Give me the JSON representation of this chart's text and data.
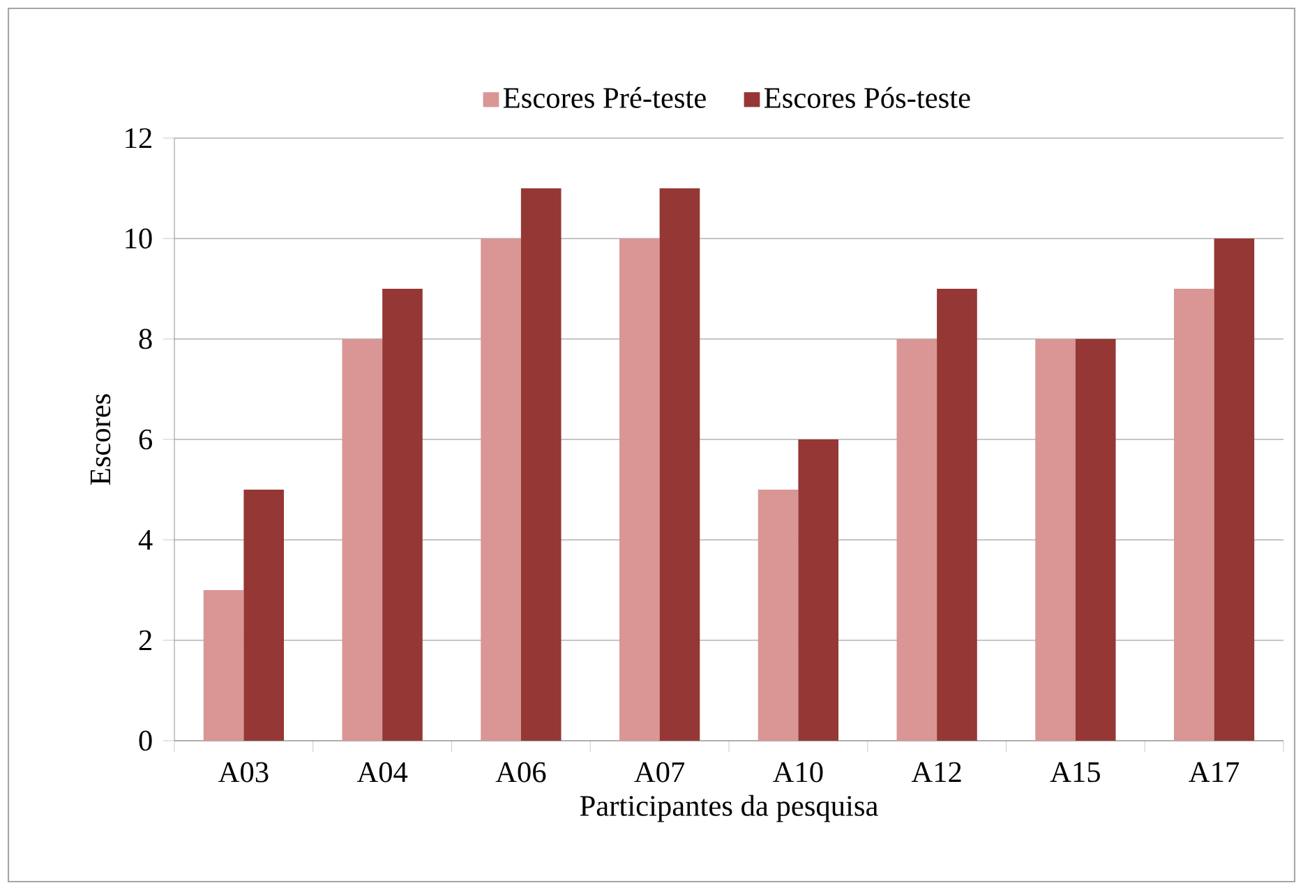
{
  "chart_data": {
    "type": "bar",
    "xlabel": "Participantes da pesquisa",
    "ylabel": "Escores",
    "categories": [
      "A03",
      "A04",
      "A06",
      "A07",
      "A10",
      "A12",
      "A15",
      "A17"
    ],
    "series": [
      {
        "name": "Escores Pré-teste",
        "color": "#d99694",
        "values": [
          3,
          8,
          10,
          10,
          5,
          8,
          8,
          9
        ]
      },
      {
        "name": "Escores Pós-teste",
        "color": "#953735",
        "values": [
          5,
          9,
          11,
          11,
          6,
          9,
          8,
          10
        ]
      }
    ],
    "ylim": [
      0,
      12
    ],
    "yticks": [
      0,
      2,
      4,
      6,
      8,
      10,
      12
    ],
    "grid": "y",
    "legend": "top"
  }
}
